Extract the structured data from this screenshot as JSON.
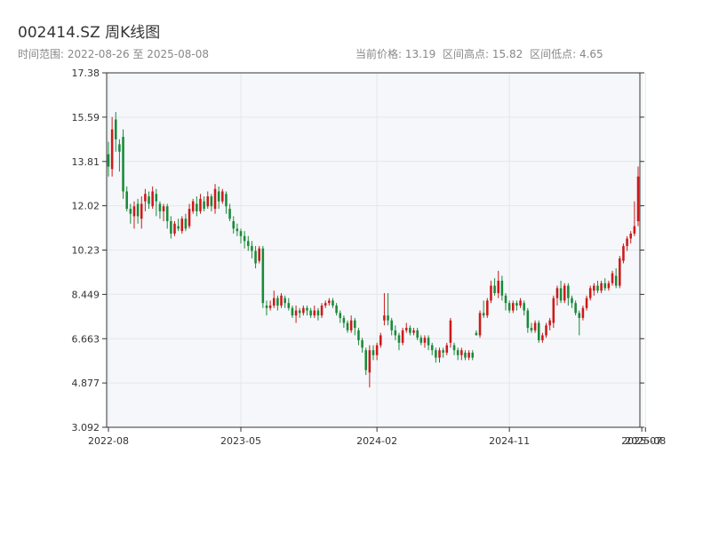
{
  "header": {
    "title": "002414.SZ 周K线图",
    "range": "时间范围: 2022-08-26 至 2025-08-08",
    "stats": [
      "当前价格: 13.19",
      "区间高点: 15.82",
      "区间低点: 4.65"
    ]
  },
  "colors": {
    "up": "#cc1a1a",
    "down": "#1a8a3a",
    "plot_bg": "#f5f7fa",
    "grid": "#e3e7ec",
    "axis": "#333333"
  },
  "chart_data": {
    "type": "candlestick",
    "title": "002414.SZ 周K线图",
    "x_ticks": [
      {
        "label": "2022-08",
        "t": 0
      },
      {
        "label": "2023-05",
        "t": 36
      },
      {
        "label": "2024-02",
        "t": 73
      },
      {
        "label": "2024-11",
        "t": 109
      },
      {
        "label": "2025-07",
        "t": 145
      },
      {
        "label": "2025-08",
        "t": 146
      }
    ],
    "y_ticks": [
      "17.38",
      "15.59",
      "13.81",
      "12.02",
      "10.23",
      "8.449",
      "6.663",
      "4.877",
      "3.092"
    ],
    "ylim": [
      3.092,
      17.38
    ],
    "grid": true,
    "candles": [
      [
        14.1,
        13.6,
        14.6,
        13.2
      ],
      [
        13.5,
        15.1,
        15.6,
        13.2
      ],
      [
        15.5,
        14.7,
        15.8,
        14.2
      ],
      [
        14.5,
        14.2,
        14.7,
        13.4
      ],
      [
        14.8,
        12.6,
        15.1,
        12.3
      ],
      [
        12.6,
        11.9,
        12.8,
        11.8
      ],
      [
        11.9,
        11.7,
        12.1,
        11.3
      ],
      [
        11.6,
        12.0,
        12.2,
        11.1
      ],
      [
        12.1,
        11.6,
        12.3,
        11.3
      ],
      [
        11.5,
        12.1,
        12.4,
        11.1
      ],
      [
        12.2,
        12.5,
        12.7,
        11.8
      ],
      [
        12.4,
        12.1,
        12.6,
        11.9
      ],
      [
        12.0,
        12.6,
        12.8,
        11.9
      ],
      [
        12.5,
        12.2,
        12.7,
        11.6
      ],
      [
        12.1,
        11.8,
        12.2,
        11.5
      ],
      [
        11.8,
        12.0,
        12.1,
        11.4
      ],
      [
        12.0,
        11.4,
        12.1,
        11.1
      ],
      [
        11.4,
        10.9,
        11.6,
        10.7
      ],
      [
        10.9,
        11.3,
        11.4,
        10.8
      ],
      [
        11.2,
        11.1,
        11.5,
        11.0
      ],
      [
        11.0,
        11.5,
        11.6,
        10.9
      ],
      [
        11.5,
        11.1,
        11.7,
        11.0
      ],
      [
        11.2,
        11.9,
        12.1,
        11.1
      ],
      [
        11.8,
        12.2,
        12.3,
        11.7
      ],
      [
        12.1,
        11.8,
        12.4,
        11.6
      ],
      [
        11.8,
        12.3,
        12.5,
        11.7
      ],
      [
        12.2,
        11.9,
        12.4,
        11.8
      ],
      [
        12.0,
        12.4,
        12.6,
        11.9
      ],
      [
        12.4,
        12.0,
        12.5,
        11.8
      ],
      [
        11.9,
        12.7,
        12.9,
        11.7
      ],
      [
        12.6,
        12.2,
        12.8,
        11.9
      ],
      [
        12.2,
        12.6,
        12.7,
        12.1
      ],
      [
        12.5,
        12.0,
        12.6,
        11.7
      ],
      [
        11.9,
        11.5,
        12.1,
        11.4
      ],
      [
        11.4,
        11.1,
        11.6,
        10.9
      ],
      [
        11.1,
        11.0,
        11.3,
        10.8
      ],
      [
        11.0,
        10.8,
        11.1,
        10.5
      ],
      [
        10.8,
        10.6,
        11.0,
        10.3
      ],
      [
        10.6,
        10.4,
        10.8,
        10.2
      ],
      [
        10.4,
        10.2,
        10.6,
        9.9
      ],
      [
        10.2,
        9.7,
        10.4,
        9.5
      ],
      [
        9.8,
        10.3,
        10.4,
        9.7
      ],
      [
        10.3,
        8.1,
        10.4,
        7.9
      ],
      [
        8.0,
        7.9,
        8.2,
        7.6
      ],
      [
        7.9,
        8.0,
        8.2,
        7.8
      ],
      [
        8.0,
        8.3,
        8.6,
        7.9
      ],
      [
        8.3,
        8.0,
        8.4,
        7.8
      ],
      [
        8.0,
        8.4,
        8.5,
        7.9
      ],
      [
        8.3,
        8.1,
        8.4,
        7.9
      ],
      [
        8.1,
        7.9,
        8.3,
        7.8
      ],
      [
        7.9,
        7.6,
        8.0,
        7.5
      ],
      [
        7.6,
        7.8,
        8.0,
        7.3
      ],
      [
        7.8,
        7.7,
        7.9,
        7.5
      ],
      [
        7.7,
        7.9,
        8.0,
        7.6
      ],
      [
        7.9,
        7.8,
        8.0,
        7.6
      ],
      [
        7.8,
        7.6,
        7.9,
        7.5
      ],
      [
        7.6,
        7.8,
        8.0,
        7.5
      ],
      [
        7.8,
        7.6,
        7.9,
        7.4
      ],
      [
        7.6,
        8.0,
        8.1,
        7.5
      ],
      [
        8.0,
        8.1,
        8.2,
        7.9
      ],
      [
        8.1,
        8.2,
        8.3,
        8.0
      ],
      [
        8.2,
        8.0,
        8.3,
        7.9
      ],
      [
        8.0,
        7.7,
        8.1,
        7.6
      ],
      [
        7.7,
        7.5,
        7.8,
        7.3
      ],
      [
        7.5,
        7.3,
        7.6,
        7.1
      ],
      [
        7.3,
        7.0,
        7.4,
        6.9
      ],
      [
        7.0,
        7.4,
        7.6,
        6.9
      ],
      [
        7.4,
        7.1,
        7.5,
        6.8
      ],
      [
        7.0,
        6.6,
        7.1,
        6.4
      ],
      [
        6.6,
        6.3,
        6.7,
        6.1
      ],
      [
        6.2,
        5.4,
        6.3,
        5.2
      ],
      [
        5.3,
        6.2,
        6.4,
        4.7
      ],
      [
        6.2,
        6.0,
        6.4,
        5.8
      ],
      [
        6.0,
        6.4,
        6.5,
        5.8
      ],
      [
        6.4,
        6.8,
        6.9,
        6.3
      ],
      [
        7.4,
        7.6,
        8.5,
        7.2
      ],
      [
        7.6,
        7.4,
        8.5,
        7.2
      ],
      [
        7.4,
        7.0,
        7.5,
        6.8
      ],
      [
        7.0,
        6.8,
        7.2,
        6.6
      ],
      [
        6.8,
        6.5,
        6.9,
        6.2
      ],
      [
        6.5,
        7.0,
        7.1,
        6.4
      ],
      [
        7.0,
        7.1,
        7.3,
        6.9
      ],
      [
        7.1,
        6.9,
        7.2,
        6.8
      ],
      [
        6.9,
        7.0,
        7.1,
        6.8
      ],
      [
        7.0,
        6.7,
        7.1,
        6.6
      ],
      [
        6.7,
        6.5,
        6.8,
        6.4
      ],
      [
        6.5,
        6.7,
        6.8,
        6.3
      ],
      [
        6.7,
        6.4,
        6.8,
        6.2
      ],
      [
        6.4,
        6.2,
        6.5,
        6.0
      ],
      [
        6.2,
        5.9,
        6.3,
        5.7
      ],
      [
        5.9,
        6.2,
        6.3,
        5.7
      ],
      [
        6.2,
        6.1,
        6.3,
        5.9
      ],
      [
        6.1,
        6.4,
        6.5,
        6.0
      ],
      [
        6.5,
        7.4,
        7.5,
        6.3
      ],
      [
        6.4,
        6.2,
        6.5,
        6.0
      ],
      [
        6.2,
        6.0,
        6.3,
        5.8
      ],
      [
        6.0,
        6.2,
        6.3,
        5.8
      ],
      [
        6.1,
        5.9,
        6.2,
        5.8
      ],
      [
        5.9,
        6.1,
        6.2,
        5.8
      ],
      [
        6.1,
        5.9,
        6.2,
        5.8
      ],
      [
        6.9,
        6.8,
        7.0,
        6.8
      ],
      [
        6.8,
        7.7,
        7.8,
        6.7
      ],
      [
        7.7,
        7.6,
        8.2,
        7.5
      ],
      [
        7.6,
        8.2,
        8.3,
        7.5
      ],
      [
        8.2,
        8.8,
        9.0,
        8.1
      ],
      [
        8.8,
        8.5,
        9.1,
        8.4
      ],
      [
        8.5,
        9.0,
        9.4,
        8.3
      ],
      [
        9.0,
        8.4,
        9.2,
        8.2
      ],
      [
        8.4,
        8.1,
        8.5,
        7.8
      ],
      [
        8.1,
        7.8,
        8.2,
        7.7
      ],
      [
        7.8,
        8.1,
        8.2,
        7.7
      ],
      [
        8.1,
        8.0,
        8.2,
        7.8
      ],
      [
        8.0,
        8.2,
        8.3,
        7.9
      ],
      [
        8.1,
        7.8,
        8.2,
        7.6
      ],
      [
        7.8,
        7.1,
        7.9,
        6.9
      ],
      [
        7.1,
        7.0,
        7.3,
        6.9
      ],
      [
        7.0,
        7.3,
        7.4,
        6.9
      ],
      [
        7.3,
        6.6,
        7.4,
        6.5
      ],
      [
        6.6,
        6.8,
        6.9,
        6.5
      ],
      [
        6.8,
        7.2,
        7.3,
        6.7
      ],
      [
        7.2,
        7.4,
        7.5,
        7.0
      ],
      [
        7.3,
        8.3,
        8.4,
        7.1
      ],
      [
        8.3,
        8.7,
        8.8,
        8.0
      ],
      [
        8.7,
        8.2,
        9.0,
        8.1
      ],
      [
        8.2,
        8.8,
        8.9,
        8.1
      ],
      [
        8.8,
        8.3,
        8.9,
        8.0
      ],
      [
        8.3,
        8.1,
        8.4,
        7.9
      ],
      [
        8.1,
        7.7,
        8.2,
        7.6
      ],
      [
        7.7,
        7.5,
        7.8,
        6.8
      ],
      [
        7.5,
        7.9,
        8.0,
        7.4
      ],
      [
        7.9,
        8.3,
        8.4,
        7.8
      ],
      [
        8.3,
        8.7,
        8.8,
        8.2
      ],
      [
        8.6,
        8.8,
        8.9,
        8.4
      ],
      [
        8.8,
        8.6,
        9.0,
        8.5
      ],
      [
        8.6,
        8.9,
        9.0,
        8.5
      ],
      [
        8.9,
        8.7,
        9.1,
        8.6
      ],
      [
        8.7,
        8.9,
        9.0,
        8.6
      ],
      [
        8.9,
        9.3,
        9.4,
        8.8
      ],
      [
        9.2,
        8.8,
        9.5,
        8.7
      ],
      [
        8.8,
        9.9,
        10.0,
        8.7
      ],
      [
        9.8,
        10.4,
        10.5,
        9.7
      ],
      [
        10.4,
        10.7,
        10.8,
        10.2
      ],
      [
        10.7,
        10.9,
        11.0,
        10.5
      ],
      [
        10.9,
        11.2,
        12.2,
        10.8
      ],
      [
        11.4,
        13.2,
        13.6,
        11.2
      ]
    ]
  }
}
